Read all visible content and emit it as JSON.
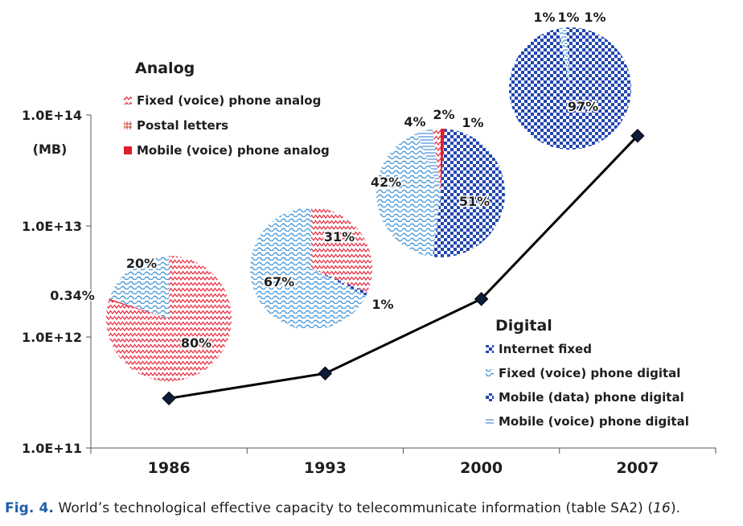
{
  "chart_data": {
    "type": "line",
    "y_scale": "log",
    "ylim": [
      100000000000.0,
      100000000000000.0
    ],
    "y_ticks": [
      "1.0E+11",
      "1.0E+12",
      "1.0E+13",
      "1.0E+14"
    ],
    "y_unit": "(MB)",
    "categories": [
      "1986",
      "1993",
      "2000",
      "2007"
    ],
    "series": [
      {
        "values": [
          280000000000.0,
          470000000000.0,
          2200000000000.0,
          65000000000000.0
        ],
        "color": "#000000"
      }
    ],
    "analog_legend": {
      "title": "Analog",
      "items": [
        {
          "label": "Fixed (voice) phone analog",
          "color": "#e8364a",
          "pattern": "zigzag"
        },
        {
          "label": "Postal letters",
          "color": "#c0392b",
          "pattern": "grid"
        },
        {
          "label": "Mobile (voice) phone analog",
          "color": "#e11d2a",
          "pattern": "solid"
        }
      ]
    },
    "digital_legend": {
      "title": "Digital",
      "items": [
        {
          "label": "Internet fixed",
          "color": "#2346b0",
          "pattern": "check"
        },
        {
          "label": "Fixed (voice) phone digital",
          "color": "#5aa7dd",
          "pattern": "wave"
        },
        {
          "label": "Mobile (data) phone digital",
          "color": "#2346b0",
          "pattern": "check"
        },
        {
          "label": "Mobile (voice) phone digital",
          "color": "#4a90d9",
          "pattern": "hlines"
        }
      ]
    },
    "pies": [
      {
        "year": "1986",
        "slices": [
          {
            "category": "Fixed (voice) phone analog",
            "value": 80,
            "label": "80%"
          },
          {
            "category": "Mobile (voice) phone analog",
            "value": 0.34,
            "label": "0.34%"
          },
          {
            "category": "Fixed (voice) phone digital",
            "value": 20,
            "label": "20%"
          }
        ]
      },
      {
        "year": "1993",
        "slices": [
          {
            "category": "Fixed (voice) phone analog",
            "value": 31,
            "label": "31%"
          },
          {
            "category": "Internet fixed",
            "value": 1,
            "label": "1%"
          },
          {
            "category": "Fixed (voice) phone digital",
            "value": 67,
            "label": "67%"
          }
        ]
      },
      {
        "year": "2000",
        "slices": [
          {
            "category": "Mobile (voice) phone analog",
            "value": 1,
            "label": "1%"
          },
          {
            "category": "Internet fixed",
            "value": 51,
            "label": "51%"
          },
          {
            "category": "Fixed (voice) phone digital",
            "value": 42,
            "label": "42%"
          },
          {
            "category": "Mobile (voice) phone digital",
            "value": 4,
            "label": "4%"
          },
          {
            "category": "Fixed (voice) phone analog",
            "value": 2,
            "label": "2%"
          }
        ]
      },
      {
        "year": "2007",
        "slices": [
          {
            "category": "Internet fixed",
            "value": 97,
            "label": "97%"
          },
          {
            "category": "Fixed (voice) phone digital",
            "value": 1,
            "label": "1%"
          },
          {
            "category": "Mobile (voice) phone digital",
            "value": 1,
            "label": "1%"
          },
          {
            "category": "Mobile (data) phone digital",
            "value": 1,
            "label": "1%"
          }
        ]
      }
    ]
  },
  "caption": {
    "figno": "Fig. 4.",
    "text": " World’s technological effective capacity to telecommunicate information (table SA2) (",
    "ref": "16",
    "end": ")."
  }
}
